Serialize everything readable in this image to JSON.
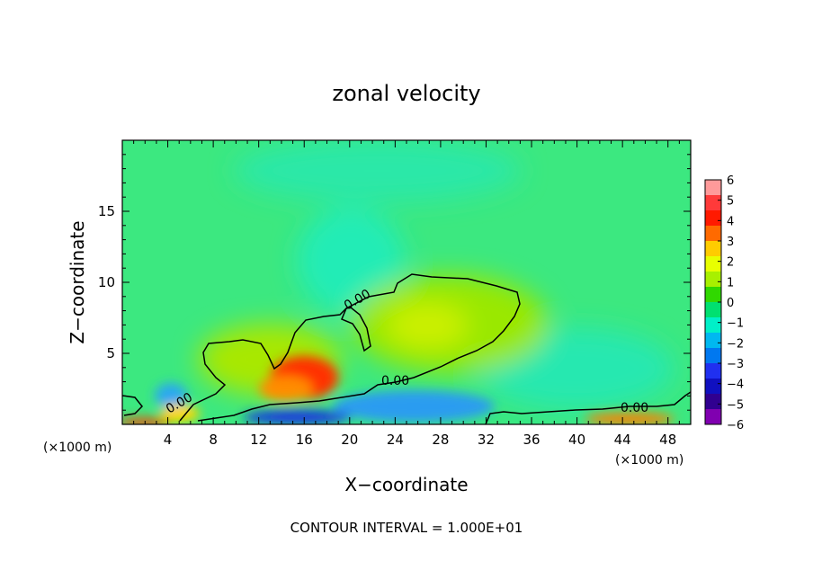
{
  "chart_data": {
    "type": "heatmap",
    "title": "zonal velocity",
    "xlabel": "X−coordinate",
    "ylabel": "Z−coordinate",
    "x_units": "(×1000 m)",
    "y_units": "(×1000 m)",
    "xlim": [
      0,
      50
    ],
    "ylim": [
      0,
      20
    ],
    "x_ticks": [
      4,
      8,
      12,
      16,
      20,
      24,
      28,
      32,
      36,
      40,
      44,
      48
    ],
    "y_ticks": [
      5,
      10,
      15
    ],
    "colorbar": {
      "ticks": [
        "6",
        "5",
        "4",
        "3",
        "2",
        "1",
        "0",
        "−1",
        "−2",
        "−3",
        "−4",
        "−5",
        "−6"
      ],
      "colors": [
        "#ff9a9a",
        "#ff3a3a",
        "#ff1a00",
        "#ff6a00",
        "#ffcc00",
        "#e8ff00",
        "#a8f000",
        "#30d800",
        "#00e070",
        "#00f0c8",
        "#00b8f0",
        "#0078f0",
        "#2030f0",
        "#1010c0",
        "#300090",
        "#8000b0"
      ]
    },
    "contour_labels": [
      "0.00",
      "0.00",
      "0.00",
      "0.00"
    ],
    "footer": "CONTOUR INTERVAL = 1.000E+01"
  }
}
